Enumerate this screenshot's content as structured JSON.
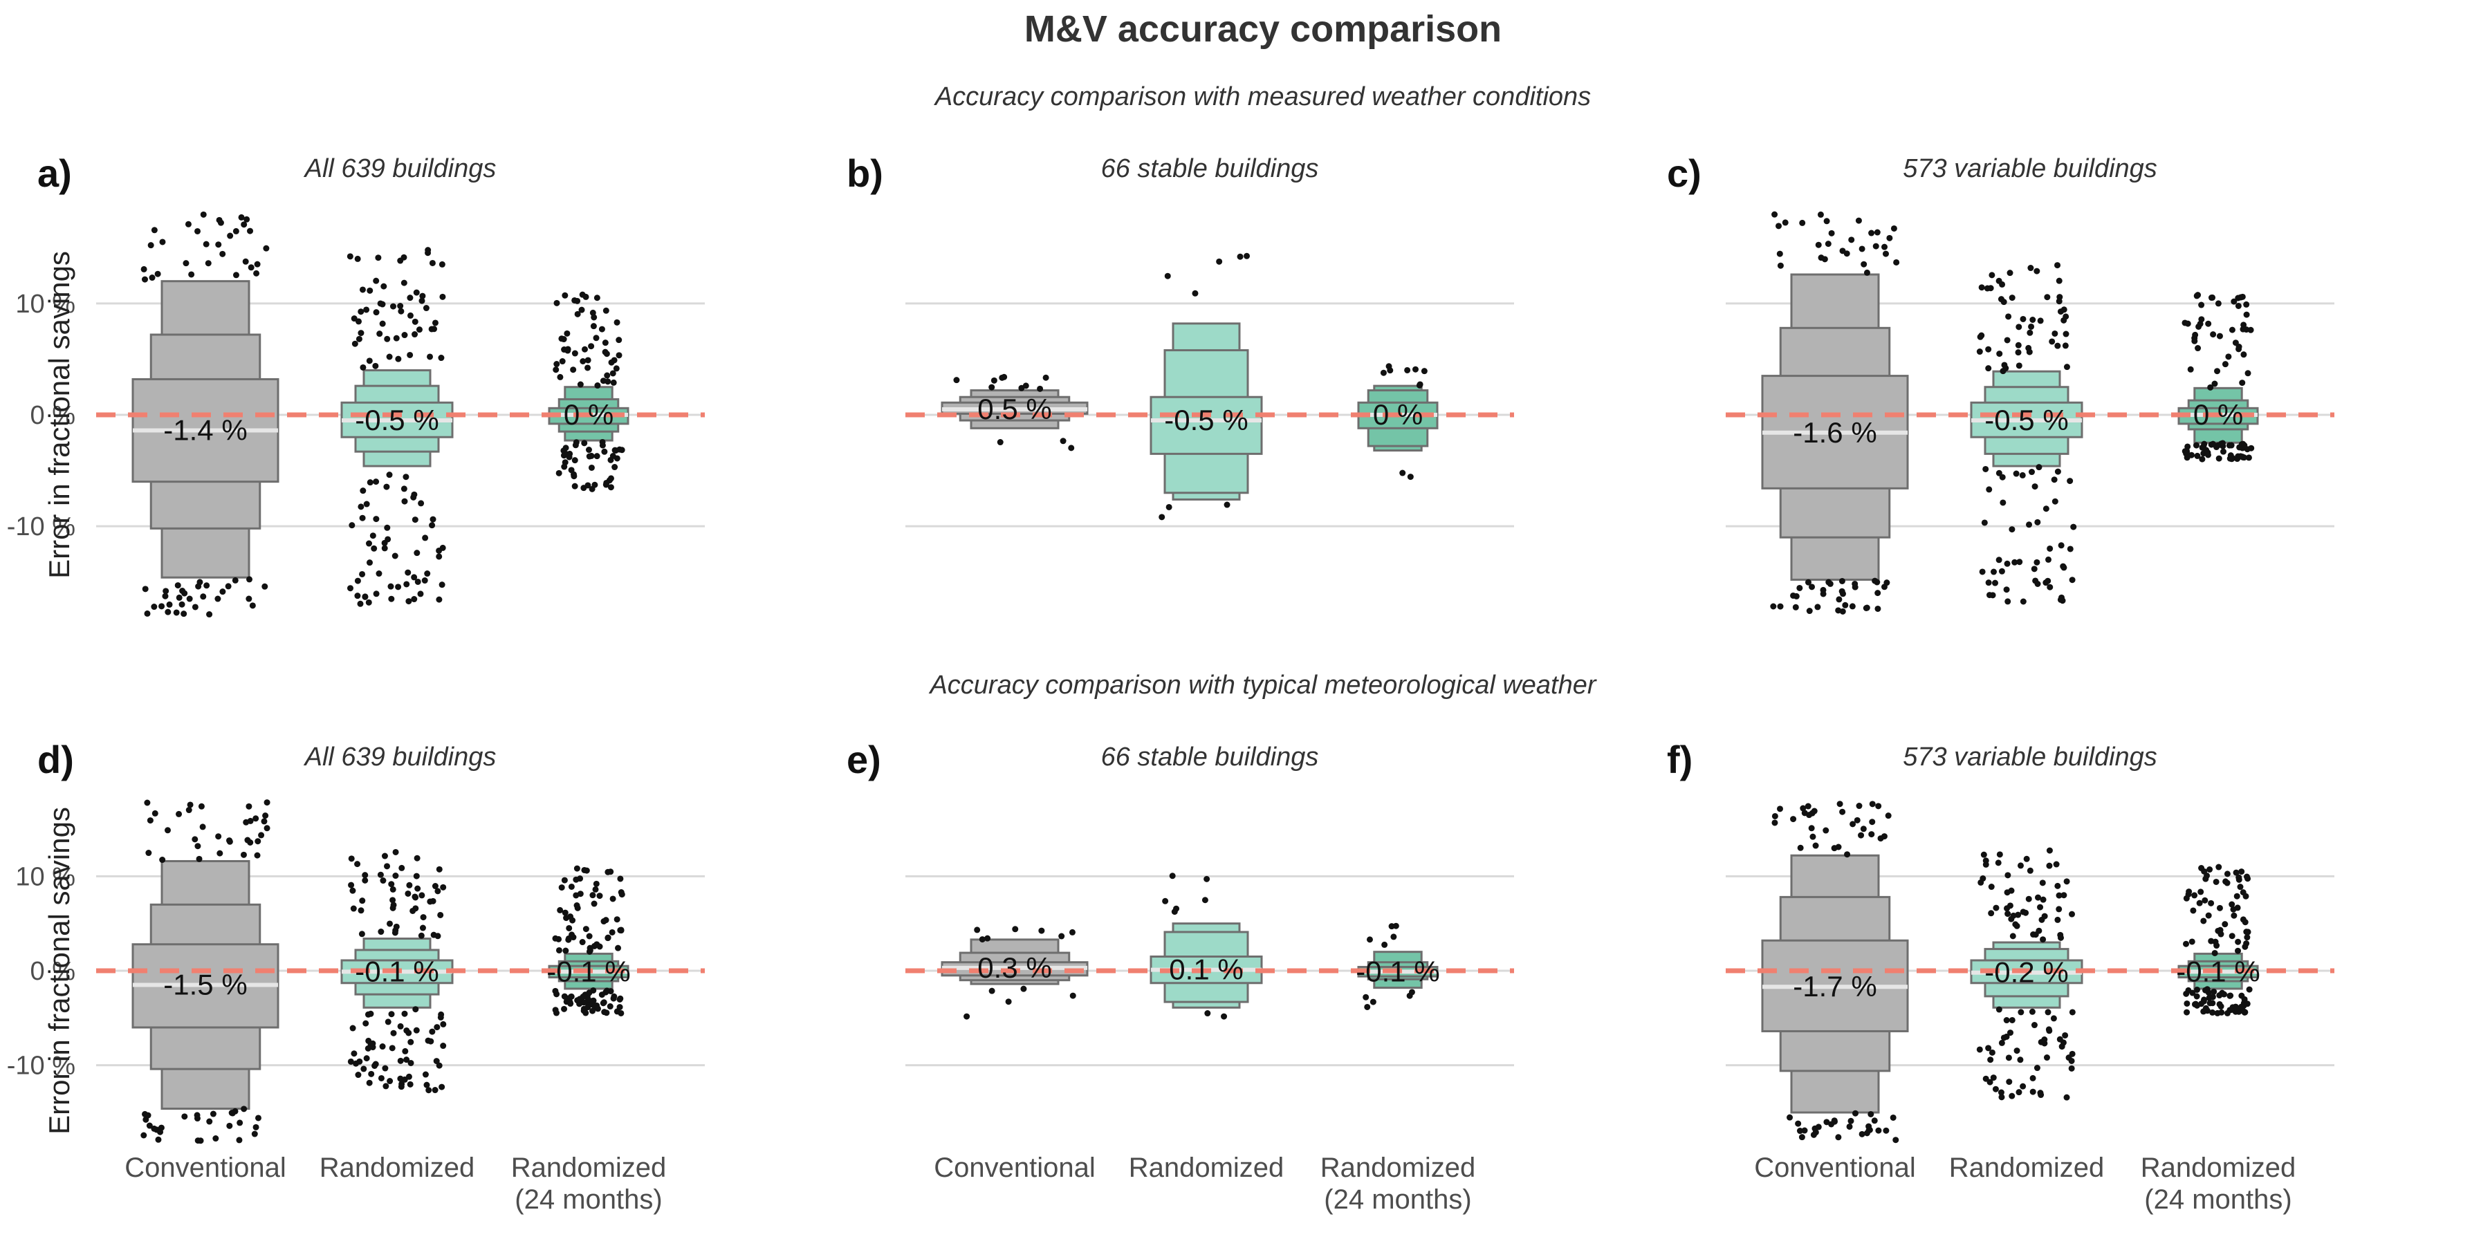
{
  "title": "M&V accuracy comparison",
  "row_subtitles": [
    "Accuracy comparison with measured weather conditions",
    "Accuracy comparison with typical meteorological weather"
  ],
  "y_axis_label": "Error in fractional savings",
  "colors": {
    "conventional": "#b3b3b3",
    "randomized": "#9ddac8",
    "randomized_24": "#74c4a7",
    "zero_line": "#f08070",
    "gridline": "#d9d9d9",
    "text": "#333333"
  },
  "chart_data": [
    {
      "type": "boxplot",
      "panel_label": "a)",
      "subtitle": "All 639 buildings",
      "ylabel": "Error in fractional savings",
      "yticks": [
        "10 %",
        "0 %",
        "-10 %"
      ],
      "ylim": [
        -18,
        18
      ],
      "grid": true,
      "categories": [
        "Conventional",
        "Randomized",
        "Randomized\n(24 months)"
      ],
      "series": [
        {
          "category": "Conventional",
          "median_label": "-1.4 %",
          "median": -1.4,
          "boxes": [
            [
              -6,
              3.2
            ],
            [
              -10.2,
              7.2
            ],
            [
              -14.6,
              12
            ]
          ],
          "outlier_range": [
            -18,
            18
          ],
          "outlier_count": 60
        },
        {
          "category": "Randomized",
          "median_label": "-0.5 %",
          "median": -0.5,
          "boxes": [
            [
              -2,
              1.1
            ],
            [
              -3.3,
              2.6
            ],
            [
              -4.6,
              4
            ]
          ],
          "outlier_range": [
            -17,
            15
          ],
          "outlier_count": 110
        },
        {
          "category": "Randomized (24 months)",
          "median_label": "0 %",
          "median": 0,
          "boxes": [
            [
              -0.8,
              0.6
            ],
            [
              -1.5,
              1.4
            ],
            [
              -2.3,
              2.5
            ]
          ],
          "outlier_range": [
            -7,
            11
          ],
          "outlier_count": 90
        }
      ]
    },
    {
      "type": "boxplot",
      "panel_label": "b)",
      "subtitle": "66 stable buildings",
      "ylabel": "",
      "yticks": [
        "10 %",
        "0 %",
        "-10 %"
      ],
      "ylim": [
        -18,
        18
      ],
      "grid": true,
      "categories": [
        "Conventional",
        "Randomized",
        "Randomized\n(24 months)"
      ],
      "series": [
        {
          "category": "Conventional",
          "median_label": "0.5 %",
          "median": 0.5,
          "boxes": [
            [
              0.1,
              1.1
            ],
            [
              -0.5,
              1.6
            ],
            [
              -1.2,
              2.2
            ]
          ],
          "outlier_range": [
            -3,
            3.5
          ],
          "outlier_count": 12
        },
        {
          "category": "Randomized",
          "median_label": "-0.5 %",
          "median": -0.5,
          "boxes": [
            [
              -3.5,
              1.6
            ],
            [
              -7,
              5.8
            ],
            [
              -7.6,
              8.2
            ]
          ],
          "outlier_range": [
            -9.5,
            15
          ],
          "outlier_count": 8
        },
        {
          "category": "Randomized (24 months)",
          "median_label": "0 %",
          "median": 0,
          "boxes": [
            [
              -1.2,
              1.1
            ],
            [
              -2.8,
              2.2
            ],
            [
              -3.2,
              2.6
            ]
          ],
          "outlier_range": [
            -7,
            4.5
          ],
          "outlier_count": 10
        }
      ]
    },
    {
      "type": "boxplot",
      "panel_label": "c)",
      "subtitle": "573 variable buildings",
      "ylabel": "",
      "yticks": [
        "10 %",
        "0 %",
        "-10 %"
      ],
      "ylim": [
        -18,
        18
      ],
      "grid": true,
      "categories": [
        "Conventional",
        "Randomized",
        "Randomized\n(24 months)"
      ],
      "series": [
        {
          "category": "Conventional",
          "median_label": "-1.6 %",
          "median": -1.6,
          "boxes": [
            [
              -6.6,
              3.5
            ],
            [
              -11,
              7.8
            ],
            [
              -14.8,
              12.6
            ]
          ],
          "outlier_range": [
            -18,
            18
          ],
          "outlier_count": 60
        },
        {
          "category": "Randomized",
          "median_label": "-0.5 %",
          "median": -0.5,
          "boxes": [
            [
              -2,
              1.1
            ],
            [
              -3.5,
              2.5
            ],
            [
              -4.6,
              3.9
            ]
          ],
          "outlier_range": [
            -17,
            13.5
          ],
          "outlier_count": 100
        },
        {
          "category": "Randomized (24 months)",
          "median_label": "0 %",
          "median": 0,
          "boxes": [
            [
              -0.8,
              0.6
            ],
            [
              -1.3,
              1.3
            ],
            [
              -2.5,
              2.4
            ]
          ],
          "outlier_range": [
            -4,
            11
          ],
          "outlier_count": 90
        }
      ]
    },
    {
      "type": "boxplot",
      "panel_label": "d)",
      "subtitle": "All 639 buildings",
      "ylabel": "Error in fractional savings",
      "yticks": [
        "10 %",
        "0 %",
        "-10 %"
      ],
      "ylim": [
        -18,
        18
      ],
      "grid": true,
      "categories": [
        "Conventional",
        "Randomized",
        "Randomized\n(24 months)"
      ],
      "series": [
        {
          "category": "Conventional",
          "median_label": "-1.5 %",
          "median": -1.5,
          "boxes": [
            [
              -6,
              2.8
            ],
            [
              -10.4,
              7
            ],
            [
              -14.6,
              11.6
            ]
          ],
          "outlier_range": [
            -18,
            18
          ],
          "outlier_count": 60
        },
        {
          "category": "Randomized",
          "median_label": "-0.1 %",
          "median": -0.1,
          "boxes": [
            [
              -1.3,
              1.1
            ],
            [
              -2.5,
              2.2
            ],
            [
              -3.9,
              3.4
            ]
          ],
          "outlier_range": [
            -13.5,
            12.8
          ],
          "outlier_count": 110
        },
        {
          "category": "Randomized (24 months)",
          "median_label": "-0.1 %",
          "median": -0.1,
          "boxes": [
            [
              -0.7,
              0.5
            ],
            [
              -1.1,
              1
            ],
            [
              -1.9,
              1.8
            ]
          ],
          "outlier_range": [
            -4.5,
            11
          ],
          "outlier_count": 110
        }
      ]
    },
    {
      "type": "boxplot",
      "panel_label": "e)",
      "subtitle": "66 stable buildings",
      "ylabel": "",
      "yticks": [
        "10 %",
        "0 %",
        "-10 %"
      ],
      "ylim": [
        -18,
        18
      ],
      "grid": true,
      "categories": [
        "Conventional",
        "Randomized",
        "Randomized\n(24 months)"
      ],
      "series": [
        {
          "category": "Conventional",
          "median_label": "0.3 %",
          "median": 0.3,
          "boxes": [
            [
              -0.5,
              0.9
            ],
            [
              -1,
              1.9
            ],
            [
              -1.4,
              3.3
            ]
          ],
          "outlier_range": [
            -5,
            4.5
          ],
          "outlier_count": 12
        },
        {
          "category": "Randomized",
          "median_label": "0.1 %",
          "median": 0.1,
          "boxes": [
            [
              -1.3,
              1.5
            ],
            [
              -3.3,
              4.1
            ],
            [
              -3.9,
              5
            ]
          ],
          "outlier_range": [
            -7,
            10.5
          ],
          "outlier_count": 8
        },
        {
          "category": "Randomized (24 months)",
          "median_label": "-0.1 %",
          "median": -0.1,
          "boxes": [
            [
              -0.6,
              0.4
            ],
            [
              -0.9,
              0.9
            ],
            [
              -1.8,
              2
            ]
          ],
          "outlier_range": [
            -4.3,
            4.8
          ],
          "outlier_count": 10
        }
      ]
    },
    {
      "type": "boxplot",
      "panel_label": "f)",
      "subtitle": "573 variable buildings",
      "ylabel": "",
      "yticks": [
        "10 %",
        "0 %",
        "-10 %"
      ],
      "ylim": [
        -18,
        18
      ],
      "grid": true,
      "categories": [
        "Conventional",
        "Randomized",
        "Randomized\n(24 months)"
      ],
      "series": [
        {
          "category": "Conventional",
          "median_label": "-1.7 %",
          "median": -1.7,
          "boxes": [
            [
              -6.4,
              3.2
            ],
            [
              -10.6,
              7.8
            ],
            [
              -15,
              12.2
            ]
          ],
          "outlier_range": [
            -18,
            18
          ],
          "outlier_count": 60
        },
        {
          "category": "Randomized",
          "median_label": "-0.2 %",
          "median": -0.2,
          "boxes": [
            [
              -1.3,
              1.1
            ],
            [
              -2.7,
              2.3
            ],
            [
              -3.9,
              3
            ]
          ],
          "outlier_range": [
            -13.5,
            12.8
          ],
          "outlier_count": 100
        },
        {
          "category": "Randomized (24 months)",
          "median_label": "-0.1 %",
          "median": -0.1,
          "boxes": [
            [
              -0.7,
              0.5
            ],
            [
              -1.1,
              1
            ],
            [
              -1.9,
              1.8
            ]
          ],
          "outlier_range": [
            -4.5,
            11
          ],
          "outlier_count": 110
        }
      ]
    }
  ]
}
